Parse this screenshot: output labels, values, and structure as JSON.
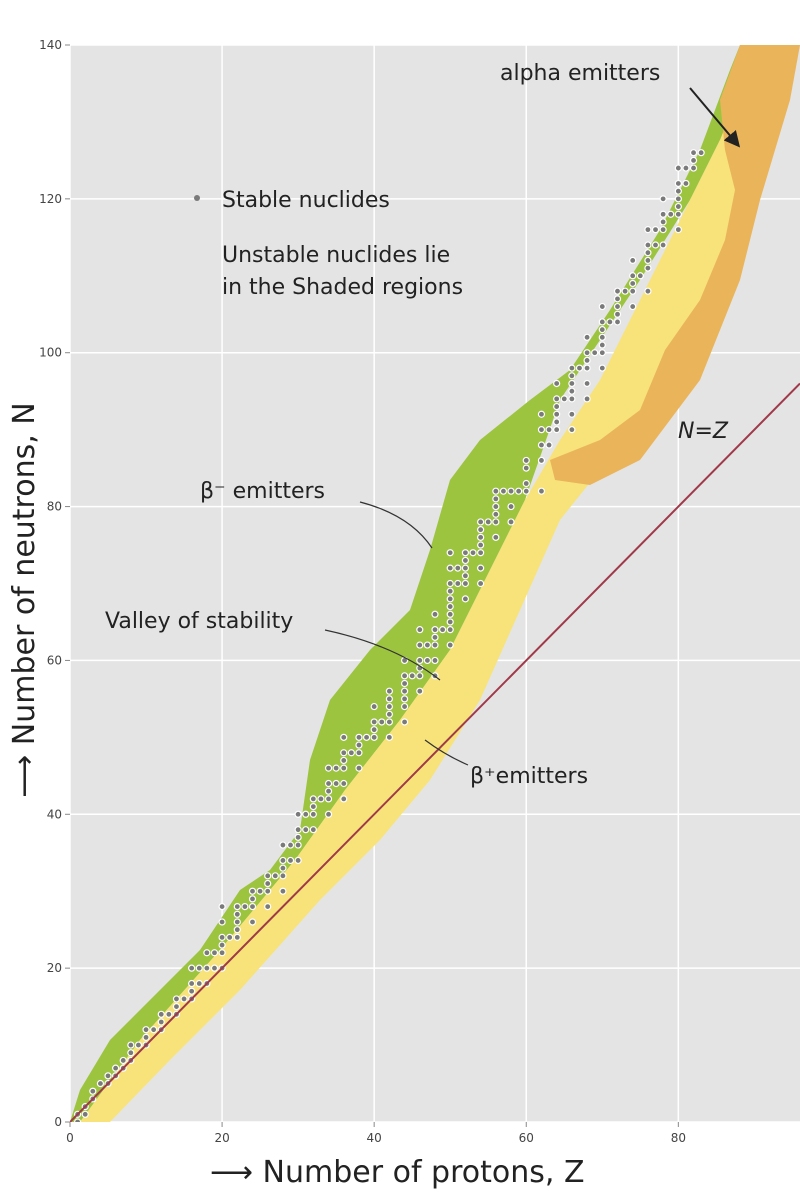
{
  "chart_data": {
    "type": "scatter",
    "x_label": "⟶ Number of protons, Z",
    "y_label": "⟶ Number of neutrons, N",
    "xlim": [
      0,
      96
    ],
    "ylim": [
      0,
      140
    ],
    "xticks": [
      0,
      20,
      40,
      60,
      80
    ],
    "yticks": [
      0,
      20,
      40,
      60,
      80,
      100,
      120,
      140
    ],
    "grid": true,
    "annotations": [
      "alpha emitters",
      "Unstable nuclides lie",
      "in the Shaded regions",
      "β⁻ emitters",
      "Valley of stability",
      "β⁺emitters"
    ],
    "series": [
      {
        "name": "Stable nuclides",
        "type": "scatter",
        "color": "#7a7a7a",
        "x": [
          1,
          1,
          2,
          2,
          3,
          3,
          4,
          5,
          5,
          6,
          6,
          7,
          7,
          8,
          8,
          8,
          9,
          10,
          10,
          10,
          11,
          12,
          12,
          12,
          13,
          14,
          14,
          14,
          15,
          16,
          16,
          16,
          16,
          17,
          17,
          18,
          18,
          18,
          19,
          19,
          20,
          20,
          20,
          20,
          20,
          20,
          21,
          22,
          22,
          22,
          22,
          22,
          23,
          24,
          24,
          24,
          24,
          25,
          26,
          26,
          26,
          26,
          27,
          28,
          28,
          28,
          28,
          28,
          29,
          29,
          30,
          30,
          30,
          30,
          30,
          31,
          31,
          32,
          32,
          32,
          32,
          33,
          34,
          34,
          34,
          34,
          34,
          35,
          35,
          36,
          36,
          36,
          36,
          36,
          36,
          37,
          38,
          38,
          38,
          38,
          39,
          40,
          40,
          40,
          40,
          41,
          42,
          42,
          42,
          42,
          42,
          42,
          44,
          44,
          44,
          44,
          44,
          44,
          44,
          45,
          46,
          46,
          46,
          46,
          46,
          46,
          47,
          47,
          48,
          48,
          48,
          48,
          48,
          48,
          49,
          50,
          50,
          50,
          50,
          50,
          50,
          50,
          50,
          50,
          50,
          51,
          51,
          52,
          52,
          52,
          52,
          52,
          52,
          53,
          54,
          54,
          54,
          54,
          54,
          54,
          54,
          55,
          56,
          56,
          56,
          56,
          56,
          56,
          57,
          58,
          58,
          58,
          59,
          60,
          60,
          60,
          60,
          62,
          62,
          62,
          62,
          62,
          63,
          63,
          64,
          64,
          64,
          64,
          64,
          64,
          65,
          66,
          66,
          66,
          66,
          66,
          66,
          66,
          67,
          68,
          68,
          68,
          68,
          68,
          68,
          69,
          70,
          70,
          70,
          70,
          70,
          70,
          70,
          71,
          72,
          72,
          72,
          72,
          72,
          73,
          74,
          74,
          74,
          74,
          74,
          75,
          76,
          76,
          76,
          76,
          76,
          76,
          77,
          77,
          78,
          78,
          78,
          78,
          78,
          79,
          80,
          80,
          80,
          80,
          80,
          80,
          80,
          81,
          81,
          82,
          82,
          82,
          83
        ],
        "values": [
          0,
          1,
          1,
          2,
          3,
          4,
          5,
          5,
          6,
          6,
          7,
          7,
          8,
          8,
          9,
          10,
          10,
          10,
          11,
          12,
          12,
          12,
          13,
          14,
          14,
          14,
          15,
          16,
          16,
          16,
          17,
          18,
          20,
          18,
          20,
          18,
          20,
          22,
          20,
          22,
          20,
          22,
          23,
          24,
          26,
          28,
          24,
          24,
          25,
          26,
          27,
          28,
          28,
          26,
          28,
          29,
          30,
          30,
          28,
          30,
          31,
          32,
          32,
          30,
          32,
          33,
          34,
          36,
          34,
          36,
          34,
          36,
          37,
          38,
          40,
          38,
          40,
          38,
          40,
          41,
          42,
          42,
          40,
          42,
          43,
          44,
          46,
          44,
          46,
          42,
          44,
          46,
          47,
          48,
          50,
          48,
          46,
          48,
          49,
          50,
          50,
          50,
          51,
          52,
          54,
          52,
          50,
          52,
          53,
          54,
          55,
          56,
          52,
          54,
          55,
          56,
          57,
          58,
          60,
          58,
          56,
          58,
          59,
          60,
          62,
          64,
          60,
          62,
          58,
          60,
          62,
          63,
          64,
          66,
          64,
          62,
          64,
          65,
          66,
          67,
          68,
          69,
          70,
          72,
          74,
          70,
          72,
          68,
          70,
          71,
          72,
          73,
          74,
          74,
          70,
          72,
          74,
          75,
          76,
          77,
          78,
          78,
          76,
          78,
          79,
          80,
          81,
          82,
          82,
          78,
          80,
          82,
          82,
          82,
          83,
          85,
          86,
          82,
          86,
          88,
          90,
          92,
          88,
          90,
          90,
          91,
          92,
          93,
          94,
          96,
          94,
          90,
          92,
          94,
          95,
          96,
          97,
          98,
          98,
          94,
          96,
          98,
          99,
          100,
          102,
          100,
          98,
          100,
          101,
          102,
          103,
          104,
          106,
          104,
          104,
          105,
          106,
          107,
          108,
          108,
          106,
          108,
          109,
          110,
          112,
          110,
          108,
          111,
          112,
          113,
          114,
          116,
          114,
          116,
          114,
          116,
          117,
          118,
          120,
          118,
          116,
          118,
          119,
          120,
          121,
          122,
          124,
          122,
          124,
          124,
          125,
          126,
          126
        ]
      },
      {
        "name": "N=Z",
        "type": "line",
        "color": "#a0394a",
        "x": [
          0,
          96
        ],
        "values": [
          0,
          96
        ]
      }
    ]
  }
}
